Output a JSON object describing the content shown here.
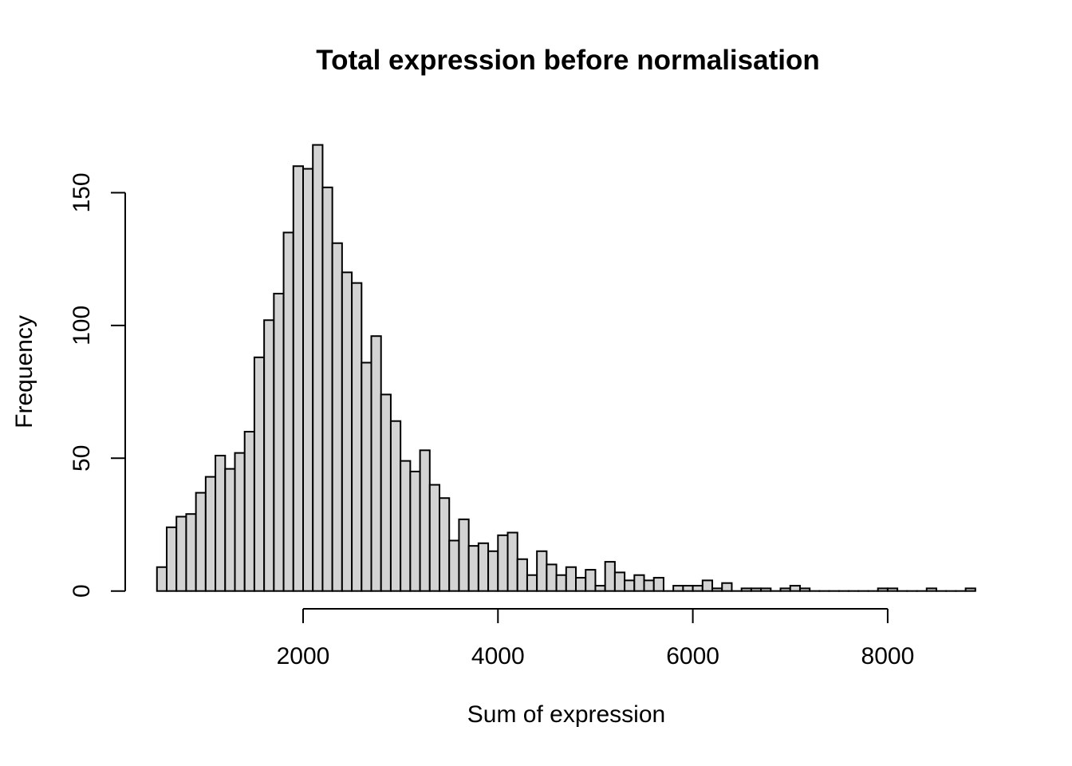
{
  "chart_data": {
    "type": "bar",
    "subtype": "histogram",
    "title": "Total expression before normalisation",
    "xlabel": "Sum of expression",
    "ylabel": "Frequency",
    "bin_start": 500,
    "bin_width": 100,
    "counts": [
      9,
      24,
      28,
      29,
      37,
      43,
      51,
      46,
      52,
      60,
      88,
      102,
      112,
      135,
      160,
      159,
      168,
      152,
      131,
      120,
      116,
      86,
      96,
      74,
      64,
      49,
      45,
      53,
      40,
      35,
      19,
      27,
      17,
      18,
      15,
      21,
      22,
      12,
      6,
      15,
      10,
      6,
      9,
      5,
      8,
      2,
      11,
      7,
      4,
      6,
      4,
      5,
      0,
      2,
      2,
      2,
      4,
      1,
      3,
      0,
      1,
      1,
      1,
      0,
      1,
      2,
      1,
      0,
      0,
      0,
      0,
      0,
      0,
      0,
      1,
      1,
      0,
      0,
      0,
      1,
      0,
      0,
      0,
      1
    ],
    "x_ticks": [
      2000,
      4000,
      6000,
      8000
    ],
    "y_ticks": [
      0,
      50,
      100,
      150
    ],
    "xlim": [
      500,
      8900
    ],
    "ylim": [
      0,
      168
    ],
    "grid": false,
    "legend": "none",
    "bar_fill": "#d3d3d3",
    "bar_border": "#000000",
    "axis_color": "#000000",
    "background": "#ffffff"
  }
}
